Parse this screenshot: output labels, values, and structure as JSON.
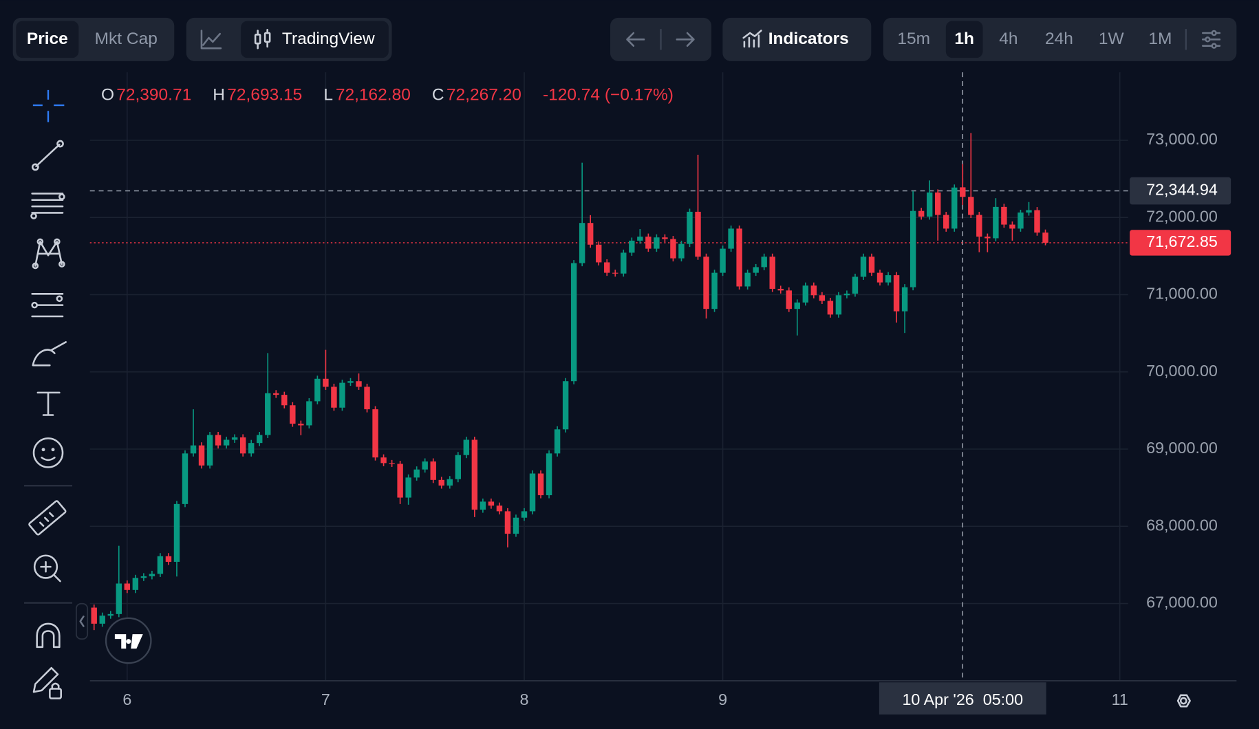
{
  "ui": {
    "price_tab": "Price",
    "mktcap_tab": "Mkt Cap",
    "tradingview": "TradingView",
    "indicators": "Indicators",
    "timeframes": [
      "15m",
      "1h",
      "4h",
      "24h",
      "1W",
      "1M"
    ],
    "active_timeframe": 1
  },
  "chart_data": {
    "type": "candlestick",
    "up_color": "#089981",
    "down_color": "#f23645",
    "x": [
      "2026-04-05T20:00",
      "2026-04-05T21:00",
      "2026-04-05T22:00",
      "2026-04-05T23:00",
      "2026-04-06T00:00",
      "2026-04-06T01:00",
      "2026-04-06T02:00",
      "2026-04-06T03:00",
      "2026-04-06T04:00",
      "2026-04-06T05:00",
      "2026-04-06T06:00",
      "2026-04-06T07:00",
      "2026-04-06T08:00",
      "2026-04-06T09:00",
      "2026-04-06T10:00",
      "2026-04-06T11:00",
      "2026-04-06T12:00",
      "2026-04-06T13:00",
      "2026-04-06T14:00",
      "2026-04-06T15:00",
      "2026-04-06T16:00",
      "2026-04-06T17:00",
      "2026-04-06T18:00",
      "2026-04-06T19:00",
      "2026-04-06T20:00",
      "2026-04-06T21:00",
      "2026-04-06T22:00",
      "2026-04-06T23:00",
      "2026-04-07T00:00",
      "2026-04-07T01:00",
      "2026-04-07T02:00",
      "2026-04-07T03:00",
      "2026-04-07T04:00",
      "2026-04-07T05:00",
      "2026-04-07T06:00",
      "2026-04-07T07:00",
      "2026-04-07T08:00",
      "2026-04-07T09:00",
      "2026-04-07T10:00",
      "2026-04-07T11:00",
      "2026-04-07T12:00",
      "2026-04-07T13:00",
      "2026-04-07T14:00",
      "2026-04-07T15:00",
      "2026-04-07T16:00",
      "2026-04-07T17:00",
      "2026-04-07T18:00",
      "2026-04-07T19:00",
      "2026-04-07T20:00",
      "2026-04-07T21:00",
      "2026-04-07T22:00",
      "2026-04-07T23:00",
      "2026-04-08T00:00",
      "2026-04-08T01:00",
      "2026-04-08T02:00",
      "2026-04-08T03:00",
      "2026-04-08T04:00",
      "2026-04-08T05:00",
      "2026-04-08T06:00",
      "2026-04-08T07:00",
      "2026-04-08T08:00",
      "2026-04-08T09:00",
      "2026-04-08T10:00",
      "2026-04-08T11:00",
      "2026-04-08T12:00",
      "2026-04-08T13:00",
      "2026-04-08T14:00",
      "2026-04-08T15:00",
      "2026-04-08T16:00",
      "2026-04-08T17:00",
      "2026-04-08T18:00",
      "2026-04-08T19:00",
      "2026-04-08T20:00",
      "2026-04-08T21:00",
      "2026-04-08T22:00",
      "2026-04-08T23:00",
      "2026-04-09T00:00",
      "2026-04-09T01:00",
      "2026-04-09T02:00",
      "2026-04-09T03:00",
      "2026-04-09T04:00",
      "2026-04-09T05:00",
      "2026-04-09T06:00",
      "2026-04-09T07:00",
      "2026-04-09T08:00",
      "2026-04-09T09:00",
      "2026-04-09T10:00",
      "2026-04-09T11:00",
      "2026-04-09T12:00",
      "2026-04-09T13:00",
      "2026-04-09T14:00",
      "2026-04-09T15:00",
      "2026-04-09T16:00",
      "2026-04-09T17:00",
      "2026-04-09T18:00",
      "2026-04-09T19:00",
      "2026-04-09T20:00",
      "2026-04-09T21:00",
      "2026-04-09T22:00",
      "2026-04-09T23:00",
      "2026-04-10T00:00",
      "2026-04-10T01:00",
      "2026-04-10T02:00",
      "2026-04-10T03:00",
      "2026-04-10T04:00",
      "2026-04-10T05:00",
      "2026-04-10T06:00",
      "2026-04-10T07:00",
      "2026-04-10T08:00",
      "2026-04-10T09:00",
      "2026-04-10T10:00",
      "2026-04-10T11:00",
      "2026-04-10T12:00",
      "2026-04-10T13:00",
      "2026-04-10T14:00",
      "2026-04-10T15:00"
    ],
    "open": [
      66947,
      66739,
      66843,
      66864,
      67259,
      67176,
      67332,
      67353,
      67384,
      67613,
      67540,
      68289,
      68944,
      69048,
      68788,
      69183,
      69048,
      69121,
      69152,
      68944,
      69079,
      69183,
      69724,
      69703,
      69568,
      69329,
      69308,
      69620,
      69911,
      69807,
      69537,
      69859,
      69880,
      69807,
      69516,
      68892,
      68819,
      68809,
      68372,
      68632,
      68736,
      68840,
      68601,
      68528,
      68611,
      68923,
      69121,
      68216,
      68320,
      68268,
      68195,
      67904,
      68112,
      68195,
      68684,
      68403,
      68944,
      69256,
      69880,
      71409,
      71929,
      71648,
      71419,
      71284,
      71274,
      71544,
      71700,
      71752,
      71596,
      71742,
      71721,
      71471,
      71658,
      72074,
      71492,
      70816,
      71284,
      71596,
      71856,
      71107,
      71284,
      71357,
      71492,
      71076,
      71055,
      70816,
      70899,
      71118,
      70993,
      70920,
      70743,
      70993,
      71014,
      71232,
      71492,
      71284,
      71159,
      71253,
      70785,
      71097,
      72085,
      72012,
      72324,
      72033,
      71856,
      72390.71,
      72267.2,
      72033,
      71752,
      71731,
      72137,
      71908,
      71856,
      72064,
      72095,
      71804
    ],
    "high": [
      66987,
      66883,
      66904,
      67748,
      67299,
      67372,
      67393,
      67424,
      67653,
      67653,
      68329,
      68984,
      69516,
      69088,
      69223,
      69223,
      69161,
      69192,
      69192,
      69119,
      69223,
      70244,
      69764,
      69743,
      69608,
      69369,
      69660,
      69951,
      70286,
      69847,
      69899,
      69920,
      69980,
      69847,
      69556,
      68932,
      68859,
      68849,
      68672,
      68776,
      68880,
      68880,
      68641,
      68651,
      68963,
      69161,
      69161,
      68360,
      68360,
      68308,
      68235,
      68152,
      68235,
      68724,
      68724,
      68984,
      69296,
      69920,
      71449,
      72709,
      72030,
      71688,
      71459,
      71324,
      71584,
      71740,
      71850,
      71792,
      71782,
      71782,
      71761,
      71698,
      72114,
      72813,
      71532,
      71324,
      71636,
      71896,
      71896,
      71324,
      71397,
      71532,
      71532,
      71116,
      71095,
      70939,
      71158,
      71158,
      71033,
      70960,
      71033,
      71054,
      71272,
      71532,
      71532,
      71324,
      71293,
      71293,
      71137,
      72344,
      72125,
      72480,
      72364,
      72073,
      72428,
      72693.15,
      73094,
      72073,
      71792,
      72250,
      72177,
      71948,
      72100,
      72200,
      72135,
      71844
    ],
    "low": [
      66656,
      66699,
      66803,
      66824,
      67136,
      67136,
      67292,
      67313,
      67344,
      67500,
      67350,
      68249,
      68904,
      68748,
      68748,
      69008,
      69008,
      69081,
      68904,
      68904,
      69039,
      69143,
      69663,
      69528,
      69289,
      69180,
      69268,
      69580,
      69767,
      69497,
      69497,
      69819,
      69767,
      69476,
      68852,
      68779,
      68769,
      68289,
      68280,
      68592,
      68696,
      68561,
      68488,
      68488,
      68571,
      68883,
      68120,
      68176,
      68228,
      68155,
      67727,
      67864,
      68072,
      68155,
      68363,
      68363,
      68904,
      69216,
      69840,
      71369,
      71608,
      71379,
      71244,
      71234,
      71234,
      71504,
      71660,
      71556,
      71556,
      71681,
      71431,
      71431,
      71618,
      71452,
      70691,
      70776,
      71244,
      71556,
      71067,
      71067,
      71244,
      71317,
      71036,
      71015,
      70776,
      70472,
      70859,
      70953,
      70880,
      70703,
      70703,
      70953,
      70974,
      71192,
      71244,
      71119,
      71119,
      70639,
      70504,
      71057,
      71972,
      71972,
      71700,
      71816,
      71816,
      72162.8,
      71993,
      71550,
      71550,
      71691,
      71868,
      71700,
      71816,
      72024,
      71764,
      71640
    ],
    "close": [
      66739,
      66843,
      66864,
      67259,
      67176,
      67332,
      67353,
      67384,
      67613,
      67540,
      68289,
      68944,
      69048,
      68788,
      69183,
      69048,
      69121,
      69152,
      68944,
      69079,
      69183,
      69724,
      69703,
      69568,
      69329,
      69308,
      69620,
      69911,
      69807,
      69537,
      69859,
      69880,
      69807,
      69516,
      68892,
      68819,
      68809,
      68372,
      68632,
      68736,
      68840,
      68601,
      68528,
      68611,
      68923,
      69121,
      68216,
      68320,
      68268,
      68195,
      67904,
      68112,
      68195,
      68684,
      68403,
      68944,
      69256,
      69880,
      71409,
      71929,
      71648,
      71419,
      71284,
      71274,
      71544,
      71700,
      71752,
      71596,
      71742,
      71721,
      71471,
      71658,
      72074,
      71492,
      70816,
      71284,
      71596,
      71856,
      71107,
      71284,
      71357,
      71492,
      71076,
      71055,
      70816,
      70899,
      71118,
      70993,
      70920,
      70743,
      70993,
      71014,
      71232,
      71492,
      71284,
      71159,
      71253,
      70785,
      71097,
      72085,
      72012,
      72324,
      72033,
      71856,
      72387.94,
      72267.2,
      72033,
      71752,
      71731,
      72137,
      71908,
      71856,
      72064,
      72095,
      71804,
      71672.85
    ],
    "xlim": [
      "2026-04-05T19:30",
      "2026-04-11T01:00"
    ],
    "xticks": [
      {
        "value": "2026-04-06T00:00",
        "label": "6"
      },
      {
        "value": "2026-04-07T00:00",
        "label": "7"
      },
      {
        "value": "2026-04-08T00:00",
        "label": "8"
      },
      {
        "value": "2026-04-09T00:00",
        "label": "9"
      },
      {
        "value": "2026-04-11T00:00",
        "label": "11"
      }
    ],
    "ylim": [
      66000,
      73880
    ],
    "yticks": [
      {
        "value": 67000,
        "label": "67,000.00"
      },
      {
        "value": 68000,
        "label": "68,000.00"
      },
      {
        "value": 69000,
        "label": "69,000.00"
      },
      {
        "value": 70000,
        "label": "70,000.00"
      },
      {
        "value": 71000,
        "label": "71,000.00"
      },
      {
        "value": 72000,
        "label": "72,000.00"
      },
      {
        "value": 73000,
        "label": "73,000.00"
      }
    ],
    "grid": true,
    "legend": [
      {
        "key": "O",
        "value": "72,390.71"
      },
      {
        "key": "H",
        "value": "72,693.15"
      },
      {
        "key": "L",
        "value": "72,162.80"
      },
      {
        "key": "C",
        "value": "72,267.20"
      }
    ],
    "change": "-120.74 (−0.17%)",
    "crosshair": {
      "x": "2026-04-10T05:00",
      "x_label": "10 Apr '26  05:00",
      "y": 72344.94,
      "y_label": "72,344.94"
    },
    "last_price": {
      "value": 71672.85,
      "label": "71,672.85"
    }
  }
}
